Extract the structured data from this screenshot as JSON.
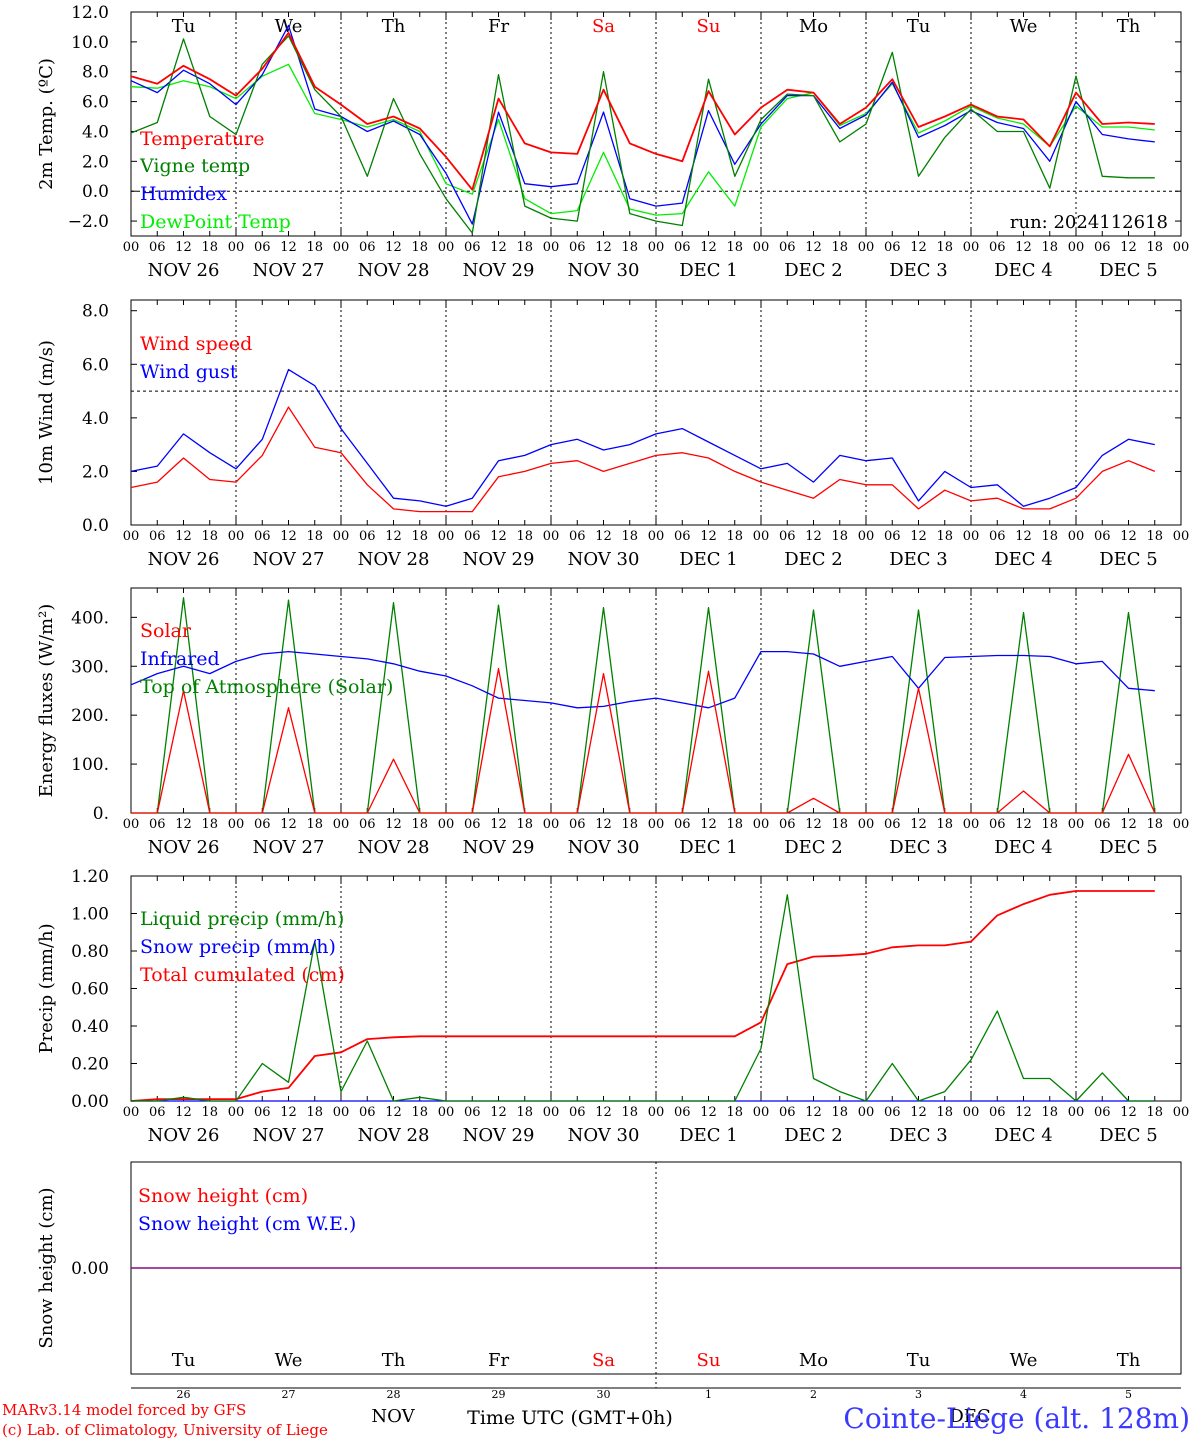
{
  "footer": {
    "model_line": "MARv3.14 model forced by GFS",
    "credit_line": "(c) Lab. of Climatology, University of Liege",
    "month_left": "NOV",
    "month_right": "DEC",
    "time_label": "Time UTC (GMT+0h)",
    "station": "Cointe-Liege (alt. 128m)"
  },
  "colors": {
    "red": "#ff0000",
    "green": "#008000",
    "blue": "#0000ff",
    "light_green": "#00ee00",
    "purple": "#800080"
  },
  "axis": {
    "hour_ticks": [
      "00",
      "06",
      "12",
      "18"
    ],
    "date_labels": [
      "NOV 26",
      "NOV 27",
      "NOV 28",
      "NOV 29",
      "NOV 30",
      "DEC  1",
      "DEC  2",
      "DEC  3",
      "DEC  4",
      "DEC  5"
    ],
    "weekdays": [
      "Tu",
      "We",
      "Th",
      "Fr",
      "Sa",
      "Su",
      "Mo",
      "Tu",
      "We",
      "Th"
    ],
    "weekend_days": [
      "Sa",
      "Su"
    ],
    "day_numbers": [
      "26",
      "27",
      "28",
      "29",
      "30",
      "1",
      "2",
      "3",
      "4",
      "5"
    ]
  },
  "chart_data": [
    {
      "type": "line",
      "ylabel": "2m Temp. (ºC)",
      "ylim": [
        -3,
        12
      ],
      "yticks": [
        "12.0",
        "10.0",
        "8.0",
        "6.0",
        "4.0",
        "2.0",
        "0.0",
        "−2.0"
      ],
      "ref_line": 0,
      "annotation": "run: 2024112618",
      "x_hours": [
        0,
        6,
        12,
        18,
        24,
        30,
        36,
        42,
        48,
        54,
        60,
        66,
        72,
        78,
        84,
        90,
        96,
        102,
        108,
        114,
        120,
        126,
        132,
        138,
        144,
        150,
        156,
        162,
        168,
        174,
        180,
        186,
        192,
        198,
        204,
        210,
        216,
        222,
        228,
        234
      ],
      "series": [
        {
          "name": "Temperature",
          "color": "red",
          "values": [
            7.7,
            7.2,
            8.4,
            7.5,
            6.4,
            8.2,
            10.6,
            7.0,
            5.8,
            4.5,
            5.0,
            4.2,
            2.3,
            0.1,
            6.2,
            3.2,
            2.6,
            2.5,
            6.8,
            3.2,
            2.5,
            2.0,
            6.7,
            3.8,
            5.6,
            6.8,
            6.6,
            4.5,
            5.6,
            7.5,
            4.3,
            5.0,
            5.8,
            5.0,
            4.8,
            3.0,
            6.6,
            4.5,
            4.6,
            4.5
          ]
        },
        {
          "name": "Vigne temp",
          "color": "green",
          "values": [
            3.9,
            4.6,
            10.2,
            5.0,
            3.8,
            8.5,
            10.4,
            6.8,
            5.0,
            1.0,
            6.2,
            2.5,
            -0.5,
            -2.8,
            7.8,
            -1.0,
            -1.8,
            -2.0,
            8.0,
            -1.5,
            -2.0,
            -2.3,
            7.5,
            1.0,
            4.8,
            6.5,
            6.4,
            3.3,
            4.5,
            9.3,
            1.0,
            3.6,
            5.5,
            4.0,
            4.0,
            0.2,
            7.7,
            1.0,
            0.9,
            0.9
          ]
        },
        {
          "name": "Humidex",
          "color": "blue",
          "values": [
            7.4,
            6.6,
            8.1,
            7.2,
            5.8,
            7.8,
            11.1,
            5.5,
            5.0,
            4.0,
            4.7,
            3.8,
            1.2,
            -2.2,
            5.3,
            0.5,
            0.3,
            0.5,
            5.3,
            -0.5,
            -1.0,
            -0.8,
            5.4,
            1.8,
            4.5,
            6.4,
            6.4,
            4.2,
            5.1,
            7.3,
            3.6,
            4.4,
            5.4,
            4.6,
            4.2,
            2.0,
            6.0,
            3.8,
            3.5,
            3.3
          ]
        },
        {
          "name": "DewPoint Temp",
          "color": "light_green",
          "values": [
            7.0,
            6.9,
            7.4,
            7.0,
            6.2,
            7.7,
            8.5,
            5.2,
            4.8,
            4.3,
            4.8,
            4.0,
            0.5,
            -0.2,
            4.8,
            -0.5,
            -1.5,
            -1.3,
            2.6,
            -1.2,
            -1.6,
            -1.5,
            1.3,
            -1.0,
            4.3,
            6.2,
            6.6,
            4.4,
            5.2,
            7.2,
            3.9,
            4.7,
            5.7,
            4.9,
            4.5,
            3.0,
            5.7,
            4.3,
            4.3,
            4.1
          ]
        }
      ]
    },
    {
      "type": "line",
      "ylabel": "10m Wind (m/s)",
      "ylim": [
        0,
        8.4
      ],
      "yticks": [
        "8.0",
        "6.0",
        "4.0",
        "2.0",
        "0.0"
      ],
      "ref_line": 5,
      "x_hours": [
        0,
        6,
        12,
        18,
        24,
        30,
        36,
        42,
        48,
        54,
        60,
        66,
        72,
        78,
        84,
        90,
        96,
        102,
        108,
        114,
        120,
        126,
        132,
        138,
        144,
        150,
        156,
        162,
        168,
        174,
        180,
        186,
        192,
        198,
        204,
        210,
        216,
        222,
        228,
        234
      ],
      "series": [
        {
          "name": "Wind speed",
          "color": "red",
          "values": [
            1.4,
            1.6,
            2.5,
            1.7,
            1.6,
            2.6,
            4.4,
            2.9,
            2.7,
            1.5,
            0.6,
            0.5,
            0.5,
            0.5,
            1.8,
            2.0,
            2.3,
            2.4,
            2.0,
            2.3,
            2.6,
            2.7,
            2.5,
            2.0,
            1.6,
            1.3,
            1.0,
            1.7,
            1.5,
            1.5,
            0.6,
            1.3,
            0.9,
            1.0,
            0.6,
            0.6,
            1.0,
            2.0,
            2.4,
            2.0
          ]
        },
        {
          "name": "Wind gust",
          "color": "blue",
          "values": [
            2.0,
            2.2,
            3.4,
            2.7,
            2.1,
            3.2,
            5.8,
            5.2,
            3.6,
            2.3,
            1.0,
            0.9,
            0.7,
            1.0,
            2.4,
            2.6,
            3.0,
            3.2,
            2.8,
            3.0,
            3.4,
            3.6,
            3.1,
            2.6,
            2.1,
            2.3,
            1.6,
            2.6,
            2.4,
            2.5,
            0.9,
            2.0,
            1.4,
            1.5,
            0.7,
            1.0,
            1.4,
            2.6,
            3.2,
            3.0
          ]
        }
      ]
    },
    {
      "type": "line",
      "ylabel": "Energy fluxes (W/m²)",
      "ylim": [
        0,
        460
      ],
      "yticks": [
        "400.",
        "300.",
        "200.",
        "100.",
        "0."
      ],
      "ref_line": null,
      "x_hours": [
        0,
        6,
        12,
        18,
        24,
        30,
        36,
        42,
        48,
        54,
        60,
        66,
        72,
        78,
        84,
        90,
        96,
        102,
        108,
        114,
        120,
        126,
        132,
        138,
        144,
        150,
        156,
        162,
        168,
        174,
        180,
        186,
        192,
        198,
        204,
        210,
        216,
        222,
        228,
        234
      ],
      "series": [
        {
          "name": "Solar",
          "color": "red",
          "values": [
            0,
            0,
            250,
            0,
            0,
            0,
            215,
            0,
            0,
            0,
            110,
            0,
            0,
            0,
            295,
            0,
            0,
            0,
            285,
            0,
            0,
            0,
            290,
            0,
            0,
            0,
            30,
            0,
            0,
            0,
            255,
            0,
            0,
            0,
            45,
            0,
            0,
            0,
            120,
            0
          ]
        },
        {
          "name": "Infrared",
          "color": "blue",
          "values": [
            262,
            285,
            300,
            285,
            310,
            325,
            330,
            325,
            320,
            315,
            305,
            290,
            280,
            260,
            235,
            230,
            225,
            215,
            218,
            228,
            235,
            225,
            215,
            235,
            330,
            330,
            325,
            300,
            310,
            320,
            255,
            318,
            320,
            322,
            322,
            320,
            305,
            310,
            255,
            250
          ]
        },
        {
          "name": "Top of Atmosphere (Solar)",
          "color": "green",
          "values": [
            0,
            0,
            440,
            0,
            0,
            0,
            435,
            0,
            0,
            0,
            430,
            0,
            0,
            0,
            425,
            0,
            0,
            0,
            420,
            0,
            0,
            0,
            420,
            0,
            0,
            0,
            415,
            0,
            0,
            0,
            415,
            0,
            0,
            0,
            410,
            0,
            0,
            0,
            410,
            0
          ]
        }
      ]
    },
    {
      "type": "line",
      "ylabel": "Precip (mm/h)",
      "ylim": [
        0,
        1.2
      ],
      "yticks": [
        "1.20",
        "1.00",
        "0.80",
        "0.60",
        "0.40",
        "0.20",
        "0.00"
      ],
      "ref_line": null,
      "x_hours": [
        0,
        6,
        12,
        18,
        24,
        30,
        36,
        42,
        48,
        54,
        60,
        66,
        72,
        78,
        84,
        90,
        96,
        102,
        108,
        114,
        120,
        126,
        132,
        138,
        144,
        150,
        156,
        162,
        168,
        174,
        180,
        186,
        192,
        198,
        204,
        210,
        216,
        222,
        228,
        234
      ],
      "series": [
        {
          "name": "Liquid precip (mm/h)",
          "color": "green",
          "values": [
            0,
            0,
            0.02,
            0,
            0,
            0.2,
            0.1,
            0.85,
            0.05,
            0.32,
            0,
            0.02,
            0,
            0,
            0,
            0,
            0,
            0,
            0,
            0,
            0,
            0,
            0,
            0,
            0.28,
            1.1,
            0.12,
            0.05,
            0,
            0.2,
            0,
            0.05,
            0.22,
            0.48,
            0.12,
            0.12,
            0,
            0.15,
            0,
            0
          ]
        },
        {
          "name": "Snow precip (mm/h)",
          "color": "blue",
          "values": [
            0,
            0,
            0,
            0,
            0,
            0,
            0,
            0,
            0,
            0,
            0,
            0,
            0,
            0,
            0,
            0,
            0,
            0,
            0,
            0,
            0,
            0,
            0,
            0,
            0,
            0,
            0,
            0,
            0,
            0,
            0,
            0,
            0,
            0,
            0,
            0,
            0,
            0,
            0,
            0
          ]
        },
        {
          "name": "Total cumulated (cm)",
          "color": "red",
          "values": [
            0,
            0.01,
            0.01,
            0.01,
            0.01,
            0.05,
            0.07,
            0.24,
            0.26,
            0.33,
            0.34,
            0.345,
            0.345,
            0.345,
            0.345,
            0.345,
            0.345,
            0.345,
            0.345,
            0.345,
            0.345,
            0.345,
            0.345,
            0.345,
            0.42,
            0.73,
            0.77,
            0.775,
            0.785,
            0.82,
            0.83,
            0.83,
            0.85,
            0.99,
            1.05,
            1.1,
            1.12,
            1.12,
            1.12,
            1.12
          ]
        }
      ]
    },
    {
      "type": "line",
      "ylabel": "Snow height (cm)",
      "ylim": [
        -1,
        1
      ],
      "yticks": [
        "0.00"
      ],
      "ref_line": null,
      "x_hours": [
        0,
        240
      ],
      "series": [
        {
          "name": "Snow height (cm)",
          "color": "red",
          "values": [
            0,
            0
          ]
        },
        {
          "name": "Snow height (cm W.E.)",
          "color": "blue",
          "values": [
            0,
            0
          ]
        }
      ]
    }
  ]
}
